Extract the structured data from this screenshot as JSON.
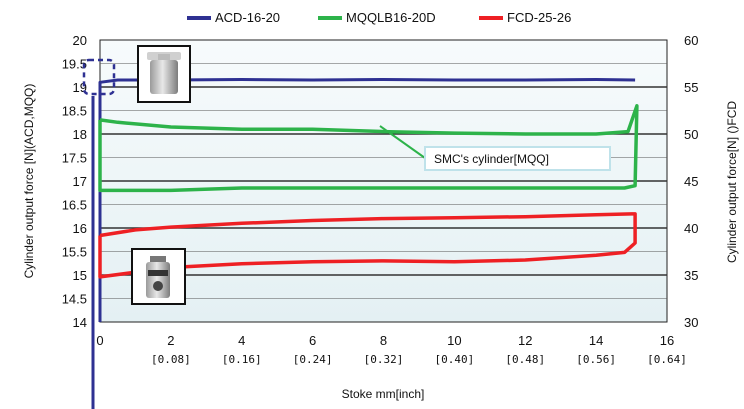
{
  "chart_data": {
    "type": "line",
    "xlabel": "Stoke mm[inch]",
    "ylabel_left": "Cylinder output force [N](ACD,MQQ)",
    "ylabel_right": "Cylinder output force[N] ()FCD",
    "xlim": [
      0,
      16
    ],
    "ylim_left": [
      14,
      20
    ],
    "ylim_right": [
      30,
      60
    ],
    "grid": true,
    "legend_position": "top",
    "x_ticks": [
      {
        "mm": "0",
        "inch": ""
      },
      {
        "mm": "2",
        "inch": "[0.08]"
      },
      {
        "mm": "4",
        "inch": "[0.16]"
      },
      {
        "mm": "6",
        "inch": "[0.24]"
      },
      {
        "mm": "8",
        "inch": "[0.32]"
      },
      {
        "mm": "10",
        "inch": "[0.40]"
      },
      {
        "mm": "12",
        "inch": "[0.48]"
      },
      {
        "mm": "14",
        "inch": "[0.56]"
      },
      {
        "mm": "16",
        "inch": "[0.64]"
      }
    ],
    "y_left_ticks": [
      "20",
      "19.5",
      "19",
      "18.5",
      "18",
      "17.5",
      "17",
      "16.5",
      "16",
      "15.5",
      "15",
      "14.5",
      "14"
    ],
    "y_right_ticks": [
      "60",
      "55",
      "50",
      "45",
      "40",
      "35",
      "30"
    ],
    "series": [
      {
        "name": "ACD-16-20",
        "color": "#2e3192",
        "axis": "left",
        "x": [
          0,
          0,
          0.5,
          2,
          4,
          6,
          8,
          10,
          12,
          14,
          15.1
        ],
        "y": [
          14,
          19.1,
          19.15,
          19.15,
          19.16,
          19.15,
          19.16,
          19.15,
          19.15,
          19.16,
          19.15
        ]
      },
      {
        "name": "MQQLB16-20D",
        "color": "#2db34a",
        "axis": "left",
        "x": [
          0,
          0.5,
          2,
          4,
          6,
          8,
          10,
          12,
          14,
          14.9,
          15.15,
          15.1,
          14.8,
          14,
          12,
          10,
          8,
          6,
          4,
          2,
          0.5,
          0,
          0
        ],
        "y": [
          18.3,
          18.25,
          18.15,
          18.1,
          18.1,
          18.05,
          18.02,
          18.0,
          18.0,
          18.05,
          18.6,
          16.9,
          16.85,
          16.85,
          16.85,
          16.85,
          16.85,
          16.85,
          16.85,
          16.8,
          16.8,
          16.8,
          18.3
        ]
      },
      {
        "name": "FCD-25-26",
        "color": "#ee2024",
        "axis": "right",
        "x": [
          0,
          1,
          2,
          4,
          6,
          8,
          10,
          12,
          14,
          15,
          15.1,
          15.1,
          14.8,
          14,
          12,
          10,
          8,
          6,
          4,
          2,
          1,
          0,
          0
        ],
        "y": [
          39.2,
          39.8,
          40.1,
          40.5,
          40.8,
          41.0,
          41.1,
          41.2,
          41.4,
          41.5,
          41.5,
          38.4,
          37.4,
          37.1,
          36.6,
          36.4,
          36.5,
          36.4,
          36.2,
          35.8,
          35.3,
          34.8,
          39.2
        ]
      }
    ],
    "annotations": [
      {
        "text": "SMC's cylinder[MQQ]"
      }
    ]
  },
  "photos": {
    "top_photo": "cylinder-photo",
    "bottom_photo": "cylinder-photo"
  }
}
